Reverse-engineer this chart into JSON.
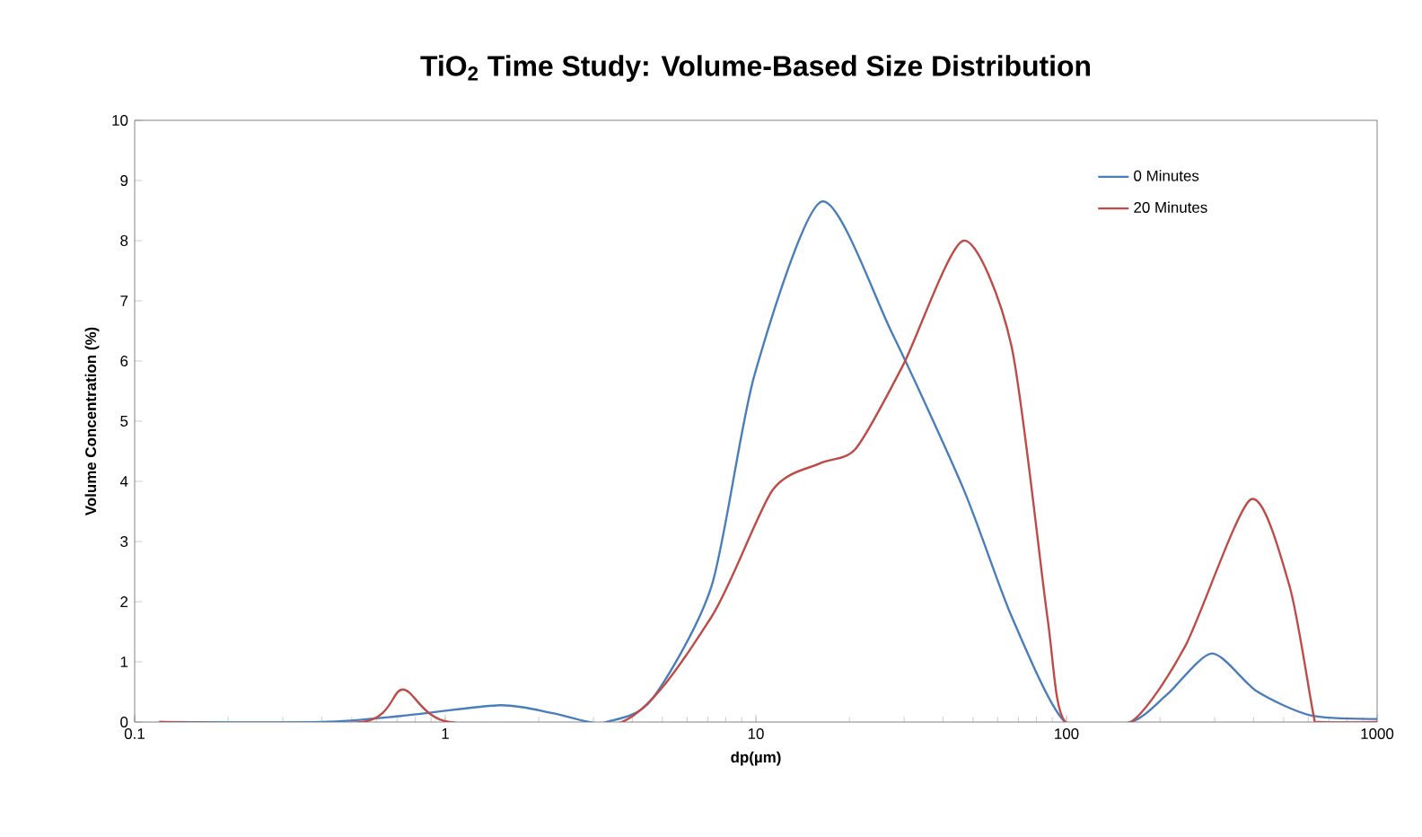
{
  "chart_data": {
    "type": "line",
    "title": "TiO$_{2}$ Time Study: Volume-Based Size Distribution",
    "xlabel": "dp(µm)",
    "ylabel": "Volume Concentration (%)",
    "log": "x",
    "xlim": [
      0.1,
      1000
    ],
    "xticks": [
      0.1,
      1,
      10,
      100,
      1000
    ],
    "ylim": [
      0,
      10
    ],
    "yticks": [
      0,
      1,
      2,
      3,
      4,
      5,
      6,
      7,
      8,
      9,
      10
    ],
    "grid": false,
    "legend": "top right",
    "marker": "none",
    "line_style": "solid",
    "series": [
      {
        "name": "0 Minutes",
        "color": "#4a7ebb",
        "x": [
          0.12,
          0.4,
          0.72,
          1.5,
          2.2,
          2.9,
          3.3,
          4.6,
          7.2,
          9.9,
          16.3,
          27.4,
          46.7,
          66.5,
          99,
          161,
          211,
          294,
          410,
          611,
          1000
        ],
        "values": [
          0,
          0,
          0.1,
          0.28,
          0.15,
          0,
          0,
          0.36,
          2.26,
          5.77,
          8.65,
          6.47,
          3.86,
          1.76,
          0,
          0,
          0.46,
          1.14,
          0.51,
          0.11,
          0.05
        ]
      },
      {
        "name": "20 Minutes",
        "color": "#be4b48",
        "x": [
          0.12,
          0.54,
          0.73,
          1.03,
          3.7,
          7.2,
          11.3,
          16.1,
          21,
          29.9,
          46.6,
          66.5,
          86.7,
          99,
          161,
          241,
          392,
          523,
          625,
          650,
          1000
        ],
        "values": [
          0,
          0,
          0.54,
          0,
          0,
          1.75,
          3.85,
          4.3,
          4.55,
          5.95,
          8.0,
          6.25,
          1.76,
          0,
          0,
          1.26,
          3.7,
          2.25,
          0.1,
          0,
          0
        ]
      }
    ]
  }
}
